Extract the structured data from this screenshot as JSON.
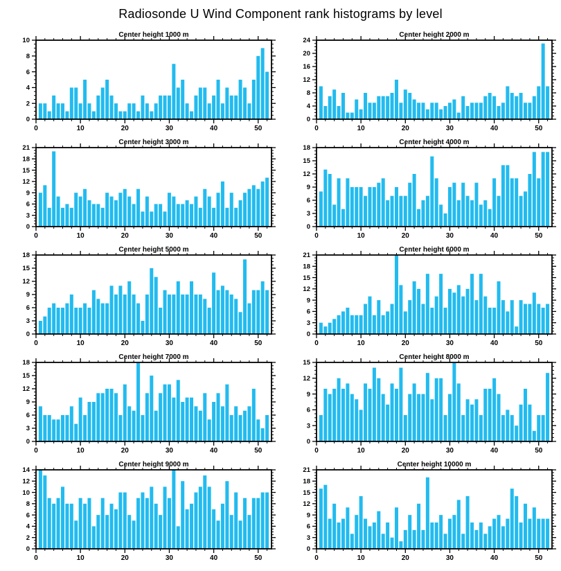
{
  "page_title": "Radiosonde U Wind Component rank histograms by level",
  "colors": {
    "bar": "#22bbef",
    "axis": "#000000",
    "text": "#000000",
    "background": "#ffffff"
  },
  "chart_data": [
    {
      "type": "bar",
      "title": "Center height 1000 m",
      "xlabel": "",
      "ylabel": "",
      "xlim": [
        0,
        53
      ],
      "ylim": [
        0,
        10
      ],
      "y_step": 2,
      "x_ticks": [
        0,
        10,
        20,
        30,
        40,
        50
      ],
      "y_ticks": [
        0,
        2,
        4,
        6,
        8,
        10
      ],
      "categories_note": "rank bins 1-52",
      "values": [
        2,
        2,
        1,
        3,
        2,
        2,
        1,
        4,
        4,
        2,
        5,
        2,
        1,
        3,
        4,
        5,
        3,
        2,
        1,
        1,
        2,
        2,
        1,
        3,
        2,
        1,
        2,
        3,
        3,
        3,
        7,
        4,
        5,
        2,
        1,
        3,
        4,
        4,
        2,
        3,
        5,
        2,
        4,
        3,
        3,
        5,
        4,
        2,
        5,
        8,
        9,
        6
      ]
    },
    {
      "type": "bar",
      "title": "Center height 2000 m",
      "xlabel": "",
      "ylabel": "",
      "xlim": [
        0,
        53
      ],
      "ylim": [
        0,
        24
      ],
      "y_step": 4,
      "x_ticks": [
        0,
        10,
        20,
        30,
        40,
        50
      ],
      "y_ticks": [
        0,
        4,
        8,
        12,
        16,
        20,
        24
      ],
      "values": [
        10,
        4,
        7,
        9,
        4,
        8,
        2,
        2,
        6,
        3,
        8,
        5,
        5,
        7,
        7,
        7,
        8,
        12,
        5,
        9,
        8,
        6,
        5,
        5,
        3,
        5,
        5,
        3,
        4,
        5,
        6,
        2,
        7,
        4,
        5,
        5,
        5,
        7,
        8,
        7,
        4,
        5,
        10,
        8,
        7,
        8,
        5,
        5,
        7,
        10,
        23,
        10
      ]
    },
    {
      "type": "bar",
      "title": "Center height 3000 m",
      "xlabel": "",
      "ylabel": "",
      "xlim": [
        0,
        53
      ],
      "ylim": [
        0,
        21
      ],
      "y_step": 3,
      "x_ticks": [
        0,
        10,
        20,
        30,
        40,
        50
      ],
      "y_ticks": [
        0,
        3,
        6,
        9,
        12,
        15,
        18,
        21
      ],
      "values": [
        9,
        11,
        5,
        20,
        8,
        5,
        6,
        5,
        9,
        8,
        10,
        7,
        6,
        6,
        5,
        9,
        8,
        7,
        9,
        10,
        8,
        6,
        10,
        4,
        8,
        4,
        6,
        6,
        4,
        9,
        8,
        6,
        6,
        7,
        6,
        8,
        5,
        10,
        8,
        5,
        9,
        12,
        5,
        9,
        5,
        7,
        9,
        10,
        11,
        10,
        12,
        13
      ]
    },
    {
      "type": "bar",
      "title": "Center height 4000 m",
      "xlabel": "",
      "ylabel": "",
      "xlim": [
        0,
        53
      ],
      "ylim": [
        0,
        18
      ],
      "y_step": 3,
      "x_ticks": [
        0,
        10,
        20,
        30,
        40,
        50
      ],
      "y_ticks": [
        0,
        3,
        6,
        9,
        12,
        15,
        18
      ],
      "values": [
        8,
        13,
        12,
        5,
        11,
        4,
        11,
        9,
        9,
        9,
        7,
        9,
        9,
        10,
        11,
        6,
        7,
        9,
        7,
        7,
        10,
        12,
        4,
        6,
        7,
        16,
        11,
        5,
        3,
        9,
        10,
        6,
        10,
        7,
        6,
        10,
        5,
        6,
        4,
        11,
        7,
        14,
        14,
        11,
        11,
        7,
        8,
        12,
        17,
        11,
        17,
        17
      ]
    },
    {
      "type": "bar",
      "title": "Center height 5000 m",
      "xlabel": "",
      "ylabel": "",
      "xlim": [
        0,
        53
      ],
      "ylim": [
        0,
        18
      ],
      "y_step": 3,
      "x_ticks": [
        0,
        10,
        20,
        30,
        40,
        50
      ],
      "y_ticks": [
        0,
        3,
        6,
        9,
        12,
        15,
        18
      ],
      "values": [
        3,
        4,
        6,
        7,
        6,
        6,
        7,
        9,
        6,
        6,
        7,
        6,
        10,
        8,
        7,
        7,
        11,
        9,
        11,
        9,
        12,
        9,
        7,
        3,
        9,
        15,
        13,
        6,
        10,
        9,
        9,
        12,
        9,
        9,
        12,
        9,
        9,
        8,
        6,
        14,
        10,
        11,
        10,
        9,
        8,
        5,
        17,
        7,
        10,
        10,
        12,
        10
      ]
    },
    {
      "type": "bar",
      "title": "Center height 6000 m",
      "xlabel": "",
      "ylabel": "",
      "xlim": [
        0,
        53
      ],
      "ylim": [
        0,
        21
      ],
      "y_step": 3,
      "x_ticks": [
        0,
        10,
        20,
        30,
        40,
        50
      ],
      "y_ticks": [
        0,
        3,
        6,
        9,
        12,
        15,
        18,
        21
      ],
      "values": [
        3,
        2,
        3,
        4,
        5,
        6,
        7,
        5,
        5,
        5,
        8,
        10,
        5,
        9,
        5,
        6,
        8,
        21,
        13,
        6,
        9,
        14,
        12,
        8,
        16,
        7,
        10,
        16,
        7,
        12,
        11,
        13,
        10,
        12,
        16,
        9,
        16,
        10,
        7,
        7,
        14,
        9,
        6,
        9,
        2,
        9,
        8,
        8,
        11,
        8,
        7,
        8
      ]
    },
    {
      "type": "bar",
      "title": "Center height 7000 m",
      "xlabel": "",
      "ylabel": "",
      "xlim": [
        0,
        53
      ],
      "ylim": [
        0,
        18
      ],
      "y_step": 3,
      "x_ticks": [
        0,
        10,
        20,
        30,
        40,
        50
      ],
      "y_ticks": [
        0,
        3,
        6,
        9,
        12,
        15,
        18
      ],
      "values": [
        8,
        6,
        6,
        5,
        5,
        6,
        6,
        8,
        4,
        10,
        6,
        9,
        9,
        11,
        11,
        12,
        12,
        11,
        6,
        13,
        8,
        7,
        18,
        6,
        11,
        15,
        7,
        11,
        13,
        13,
        10,
        14,
        9,
        10,
        10,
        8,
        7,
        11,
        5,
        9,
        11,
        8,
        13,
        6,
        8,
        6,
        7,
        8,
        12,
        5,
        3,
        6
      ]
    },
    {
      "type": "bar",
      "title": "Center height 8000 m",
      "xlabel": "",
      "ylabel": "",
      "xlim": [
        0,
        53
      ],
      "ylim": [
        0,
        15
      ],
      "y_step": 3,
      "x_ticks": [
        0,
        10,
        20,
        30,
        40,
        50
      ],
      "y_ticks": [
        0,
        3,
        6,
        9,
        12,
        15
      ],
      "values": [
        5,
        10,
        9,
        10,
        12,
        10,
        11,
        9,
        8,
        6,
        11,
        10,
        14,
        12,
        9,
        7,
        11,
        10,
        14,
        5,
        9,
        11,
        9,
        9,
        13,
        8,
        12,
        12,
        5,
        9,
        15,
        11,
        5,
        8,
        7,
        8,
        5,
        10,
        10,
        12,
        9,
        5,
        6,
        5,
        3,
        7,
        10,
        7,
        2,
        5,
        5,
        13
      ]
    },
    {
      "type": "bar",
      "title": "Center height 9000 m",
      "xlabel": "",
      "ylabel": "",
      "xlim": [
        0,
        53
      ],
      "ylim": [
        0,
        14
      ],
      "y_step": 2,
      "x_ticks": [
        0,
        10,
        20,
        30,
        40,
        50
      ],
      "y_ticks": [
        0,
        2,
        4,
        6,
        8,
        10,
        12,
        14
      ],
      "values": [
        14,
        13,
        9,
        8,
        9,
        11,
        8,
        8,
        5,
        9,
        8,
        9,
        4,
        6,
        9,
        6,
        8,
        7,
        10,
        10,
        6,
        5,
        9,
        10,
        9,
        11,
        8,
        6,
        11,
        9,
        14,
        4,
        12,
        7,
        8,
        10,
        11,
        13,
        11,
        7,
        5,
        8,
        12,
        6,
        10,
        5,
        9,
        6,
        9,
        9,
        10,
        10
      ]
    },
    {
      "type": "bar",
      "title": "Center height 10000 m",
      "xlabel": "",
      "ylabel": "",
      "xlim": [
        0,
        53
      ],
      "ylim": [
        0,
        21
      ],
      "y_step": 3,
      "x_ticks": [
        0,
        10,
        20,
        30,
        40,
        50
      ],
      "y_ticks": [
        0,
        3,
        6,
        9,
        12,
        15,
        18,
        21
      ],
      "values": [
        16,
        17,
        8,
        12,
        7,
        8,
        11,
        4,
        9,
        14,
        8,
        6,
        7,
        10,
        4,
        7,
        3,
        11,
        2,
        5,
        9,
        5,
        12,
        5,
        19,
        7,
        7,
        9,
        4,
        8,
        9,
        13,
        4,
        14,
        7,
        5,
        7,
        4,
        6,
        8,
        9,
        6,
        8,
        16,
        14,
        7,
        12,
        8,
        11,
        8,
        8,
        8
      ]
    }
  ]
}
